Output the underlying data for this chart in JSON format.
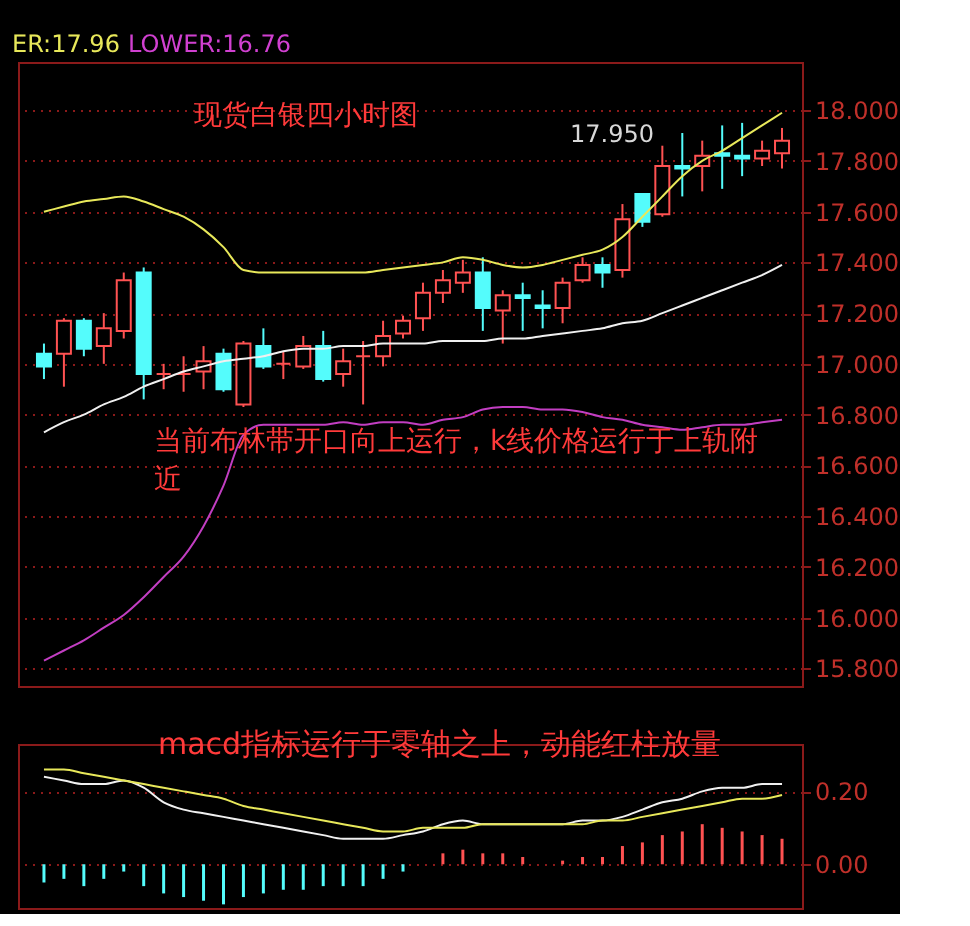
{
  "chart_data": [
    {
      "type": "candlestick",
      "categories": [
        null,
        null,
        null,
        null,
        null,
        null,
        null,
        null,
        null,
        null,
        null,
        null,
        null,
        null,
        null,
        null,
        null,
        null,
        null,
        null,
        null,
        null,
        null,
        null,
        null,
        null,
        null,
        null,
        null,
        null,
        null,
        null,
        null,
        null,
        null,
        null,
        null,
        null
      ],
      "ohlc": [
        [
          17.04,
          17.08,
          16.94,
          16.99
        ],
        [
          17.04,
          17.18,
          16.91,
          17.17
        ],
        [
          17.17,
          17.18,
          17.03,
          17.06
        ],
        [
          17.07,
          17.2,
          17.0,
          17.14
        ],
        [
          17.13,
          17.36,
          17.1,
          17.33
        ],
        [
          17.36,
          17.38,
          16.86,
          16.96
        ],
        [
          16.96,
          17.0,
          16.9,
          16.96
        ],
        [
          16.96,
          17.03,
          16.89,
          16.96
        ],
        [
          16.97,
          17.07,
          16.9,
          17.01
        ],
        [
          17.04,
          17.06,
          16.89,
          16.9
        ],
        [
          16.84,
          17.09,
          16.83,
          17.08
        ],
        [
          17.07,
          17.14,
          16.98,
          16.99
        ],
        [
          17.0,
          17.05,
          16.94,
          17.0
        ],
        [
          16.99,
          17.11,
          16.98,
          17.07
        ],
        [
          17.07,
          17.13,
          16.93,
          16.94
        ],
        [
          16.96,
          17.06,
          16.91,
          17.01
        ],
        [
          17.03,
          17.09,
          16.84,
          17.03
        ],
        [
          17.03,
          17.17,
          16.99,
          17.11
        ],
        [
          17.12,
          17.19,
          17.1,
          17.17
        ],
        [
          17.18,
          17.32,
          17.13,
          17.28
        ],
        [
          17.28,
          17.37,
          17.24,
          17.33
        ],
        [
          17.32,
          17.41,
          17.28,
          17.36
        ],
        [
          17.36,
          17.42,
          17.13,
          17.22
        ],
        [
          17.21,
          17.29,
          17.08,
          17.27
        ],
        [
          17.27,
          17.32,
          17.13,
          17.26
        ],
        [
          17.23,
          17.29,
          17.14,
          17.22
        ],
        [
          17.22,
          17.34,
          17.16,
          17.32
        ],
        [
          17.33,
          17.42,
          17.32,
          17.39
        ],
        [
          17.39,
          17.42,
          17.3,
          17.36
        ],
        [
          17.37,
          17.63,
          17.34,
          17.57
        ],
        [
          17.67,
          17.67,
          17.54,
          17.56
        ],
        [
          17.59,
          17.86,
          17.58,
          17.78
        ],
        [
          17.78,
          17.91,
          17.66,
          17.77
        ],
        [
          17.78,
          17.88,
          17.68,
          17.82
        ],
        [
          17.83,
          17.94,
          17.69,
          17.82
        ],
        [
          17.82,
          17.95,
          17.74,
          17.81
        ],
        [
          17.81,
          17.88,
          17.78,
          17.84
        ],
        [
          17.83,
          17.93,
          17.77,
          17.88
        ]
      ],
      "colors": [
        "#54fcfc",
        "#ff5252",
        "#54fcfc",
        "#ff5252",
        "#ff5252",
        "#54fcfc",
        "#ff5252",
        "#ff5252",
        "#ff5252",
        "#54fcfc",
        "#ff5252",
        "#54fcfc",
        "#ff5252",
        "#ff5252",
        "#54fcfc",
        "#ff5252",
        "#ff5252",
        "#ff5252",
        "#ff5252",
        "#ff5252",
        "#ff5252",
        "#ff5252",
        "#54fcfc",
        "#ff5252",
        "#54fcfc",
        "#54fcfc",
        "#ff5252",
        "#ff5252",
        "#54fcfc",
        "#ff5252",
        "#54fcfc",
        "#ff5252",
        "#54fcfc",
        "#ff5252",
        "#54fcfc",
        "#54fcfc",
        "#ff5252",
        "#ff5252"
      ],
      "series": [
        {
          "type": "line",
          "color": "#e8e85a",
          "values": [
            17.6,
            17.62,
            17.64,
            17.65,
            17.66,
            17.64,
            17.61,
            17.58,
            17.53,
            17.46,
            17.37,
            17.36,
            17.36,
            17.36,
            17.36,
            17.36,
            17.36,
            17.37,
            17.38,
            17.39,
            17.4,
            17.42,
            17.41,
            17.39,
            17.38,
            17.39,
            17.41,
            17.43,
            17.45,
            17.5,
            17.58,
            17.66,
            17.74,
            17.8,
            17.84,
            17.89,
            17.94,
            17.99
          ]
        },
        {
          "type": "line",
          "color": "#f0f0f0",
          "values": [
            16.73,
            16.77,
            16.8,
            16.84,
            16.87,
            16.91,
            16.94,
            16.97,
            16.99,
            17.01,
            17.02,
            17.03,
            17.05,
            17.06,
            17.06,
            17.07,
            17.07,
            17.08,
            17.08,
            17.08,
            17.09,
            17.09,
            17.09,
            17.1,
            17.1,
            17.11,
            17.12,
            17.13,
            17.14,
            17.16,
            17.17,
            17.2,
            17.23,
            17.26,
            17.29,
            17.32,
            17.35,
            17.39
          ]
        },
        {
          "type": "line",
          "color": "#c23ec2",
          "values": [
            15.83,
            15.87,
            15.91,
            15.96,
            16.01,
            16.08,
            16.16,
            16.24,
            16.36,
            16.52,
            16.72,
            16.76,
            16.76,
            16.76,
            16.76,
            16.77,
            16.76,
            16.77,
            16.77,
            16.76,
            16.78,
            16.79,
            16.82,
            16.83,
            16.83,
            16.82,
            16.82,
            16.81,
            16.79,
            16.78,
            16.76,
            16.75,
            16.74,
            16.75,
            16.76,
            16.76,
            16.77,
            16.78
          ]
        }
      ],
      "ylim": [
        15.73,
        18.19
      ],
      "yticks": [
        {
          "value": 15.8,
          "label": "15.800"
        },
        {
          "value": 16.0,
          "label": "16.000"
        },
        {
          "value": 16.2,
          "label": "16.200"
        },
        {
          "value": 16.4,
          "label": "16.400"
        },
        {
          "value": 16.6,
          "label": "16.600"
        },
        {
          "value": 16.8,
          "label": "16.800"
        },
        {
          "value": 17.0,
          "label": "17.000"
        },
        {
          "value": 17.2,
          "label": "17.200"
        },
        {
          "value": 17.4,
          "label": "17.400"
        },
        {
          "value": 17.6,
          "label": "17.600"
        },
        {
          "value": 17.8,
          "label": "17.800"
        },
        {
          "value": 18.0,
          "label": "18.000"
        }
      ],
      "grid": "y",
      "tick_labels": "y",
      "annotations": [
        "ER:17.96",
        "LOWER:16.76",
        "现货白银四小时图",
        "17.950",
        "当前布林带开口向上运行，k线价格运行于上轨附近"
      ]
    },
    {
      "type": "bar",
      "categories": [
        null,
        null,
        null,
        null,
        null,
        null,
        null,
        null,
        null,
        null,
        null,
        null,
        null,
        null,
        null,
        null,
        null,
        null,
        null,
        null,
        null,
        null,
        null,
        null,
        null,
        null,
        null,
        null,
        null,
        null,
        null,
        null,
        null,
        null,
        null,
        null,
        null,
        null
      ],
      "series": [
        {
          "type": "bar",
          "colors": [
            "#54fcfc",
            "#54fcfc",
            "#54fcfc",
            "#54fcfc",
            "#54fcfc",
            "#54fcfc",
            "#54fcfc",
            "#54fcfc",
            "#54fcfc",
            "#54fcfc",
            "#54fcfc",
            "#54fcfc",
            "#54fcfc",
            "#54fcfc",
            "#54fcfc",
            "#54fcfc",
            "#54fcfc",
            "#54fcfc",
            "#54fcfc",
            "#ff5252",
            "#ff5252",
            "#ff5252",
            "#ff5252",
            "#ff5252",
            "#ff5252",
            "#ff5252",
            "#ff5252",
            "#ff5252",
            "#ff5252",
            "#ff5252",
            "#ff5252",
            "#ff5252",
            "#ff5252",
            "#ff5252",
            "#ff5252",
            "#ff5252",
            "#ff5252",
            "#ff5252"
          ],
          "values": [
            -0.05,
            -0.04,
            -0.06,
            -0.04,
            -0.02,
            -0.06,
            -0.08,
            -0.09,
            -0.1,
            -0.11,
            -0.09,
            -0.08,
            -0.07,
            -0.07,
            -0.06,
            -0.06,
            -0.06,
            -0.04,
            -0.02,
            0.0,
            0.03,
            0.04,
            0.03,
            0.03,
            0.02,
            0.0,
            0.01,
            0.02,
            0.02,
            0.05,
            0.06,
            0.08,
            0.09,
            0.11,
            0.1,
            0.09,
            0.08,
            0.07
          ]
        },
        {
          "type": "line",
          "color": "#f0f0f0",
          "values": [
            0.24,
            0.23,
            0.22,
            0.22,
            0.23,
            0.21,
            0.17,
            0.15,
            0.14,
            0.13,
            0.12,
            0.11,
            0.1,
            0.09,
            0.08,
            0.07,
            0.07,
            0.07,
            0.08,
            0.09,
            0.11,
            0.12,
            0.11,
            0.11,
            0.11,
            0.11,
            0.11,
            0.12,
            0.12,
            0.13,
            0.15,
            0.17,
            0.18,
            0.2,
            0.21,
            0.21,
            0.22,
            0.22
          ]
        },
        {
          "type": "line",
          "color": "#e8e85a",
          "values": [
            0.26,
            0.26,
            0.25,
            0.24,
            0.23,
            0.22,
            0.21,
            0.2,
            0.19,
            0.18,
            0.16,
            0.15,
            0.14,
            0.13,
            0.12,
            0.11,
            0.1,
            0.09,
            0.09,
            0.1,
            0.1,
            0.1,
            0.11,
            0.11,
            0.11,
            0.11,
            0.11,
            0.11,
            0.12,
            0.12,
            0.13,
            0.14,
            0.15,
            0.16,
            0.17,
            0.18,
            0.18,
            0.19
          ]
        }
      ],
      "ylim": [
        -0.12,
        0.33
      ],
      "yticks": [
        {
          "value": 0.0,
          "label": "0.00"
        },
        {
          "value": 0.2,
          "label": "0.20"
        }
      ],
      "grid": "y",
      "tick_labels": "y",
      "annotations": [
        "macd指标运行于零轴之上，动能红柱放量"
      ]
    }
  ]
}
